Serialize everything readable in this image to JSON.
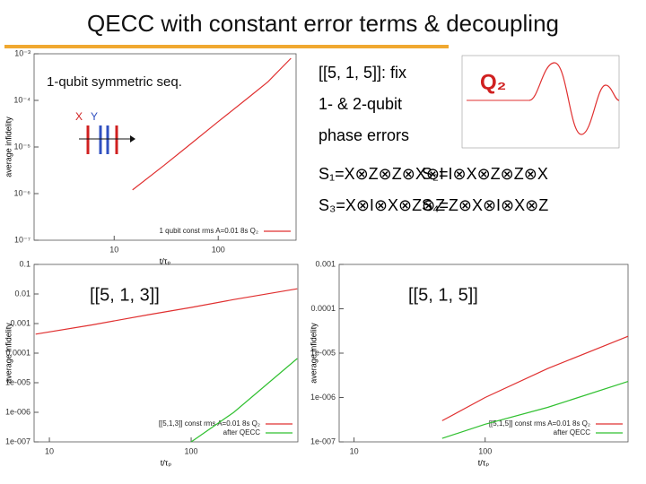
{
  "slide": {
    "title": "QECC with constant error terms & decoupling",
    "info": [
      "[[5, 1, 5]]: fix",
      "1- & 2-qubit",
      "phase errors"
    ],
    "qubit_label": "Q₂",
    "stabilizers": [
      "S₁=X⊗Z⊗Z⊗X⊗I",
      "S₂=I⊗X⊗Z⊗Z⊗X",
      "S₃=X⊗I⊗X⊗Z⊗Z",
      "S₄=Z⊗X⊗I⊗X⊗Z"
    ]
  },
  "chart_data": [
    {
      "type": "line",
      "log_x": true,
      "log_y": true,
      "xlabel": "t/τₚ",
      "ylabel": "average infidelity",
      "annotations": [
        "1-qubit symmetric seq.",
        "X",
        "Y"
      ],
      "x": [
        15,
        30,
        50,
        100,
        200,
        300,
        500
      ],
      "series": [
        {
          "name": "1 qubit const rms A=0.01 8s Q₂",
          "color": "#e03030",
          "values": [
            1.2e-06,
            4e-06,
            1e-05,
            3.5e-05,
            0.00012,
            0.00025,
            0.0008
          ]
        }
      ],
      "xlim": [
        1.7,
        560
      ],
      "ylim": [
        1e-07,
        0.001
      ],
      "xticks": [
        10,
        100
      ],
      "yticks": [
        {
          "value": 1e-07,
          "label": "10⁻⁷"
        },
        {
          "value": 1e-06,
          "label": "10⁻⁶"
        },
        {
          "value": 1e-05,
          "label": "10⁻⁵"
        },
        {
          "value": 0.0001,
          "label": "10⁻⁴"
        },
        {
          "value": 0.001,
          "label": "10⁻³"
        }
      ]
    },
    {
      "type": "line",
      "log_x": true,
      "log_y": true,
      "xlabel": "t/τₚ",
      "ylabel": "average infidelity",
      "annotations": [
        "[[5, 1, 3]]"
      ],
      "x": [
        8,
        20,
        50,
        100,
        200,
        560
      ],
      "series": [
        {
          "name": "[[5,1,3]] const rms A=0.01 8s Q₂",
          "color": "#e03030",
          "values": [
            0.00044,
            0.0009,
            0.002,
            0.0035,
            0.0065,
            0.015
          ]
        },
        {
          "name": "after QECC",
          "color": "#30c030",
          "values": [
            null,
            null,
            null,
            1e-07,
            1e-06,
            6.6e-05
          ]
        }
      ],
      "xlim": [
        7.8,
        566
      ],
      "ylim": [
        1e-07,
        0.1
      ],
      "xticks": [
        10,
        100
      ],
      "yticks": [
        {
          "value": 1e-07,
          "label": "1e-007"
        },
        {
          "value": 1e-06,
          "label": "1e-006"
        },
        {
          "value": 1e-05,
          "label": "1e-005"
        },
        0.0001,
        0.001,
        0.01,
        0.1
      ]
    },
    {
      "type": "line",
      "log_x": true,
      "log_y": true,
      "xlabel": "t/τₚ",
      "ylabel": "average infidelity",
      "annotations": [
        "[[5, 1, 5]]"
      ],
      "x": [
        47,
        100,
        300,
        1230
      ],
      "series": [
        {
          "name": "[[5,1,5]] const rms A=0.01 8s Q₂",
          "color": "#e03030",
          "values": [
            3e-07,
            1e-06,
            4.5e-06,
            2.4e-05
          ]
        },
        {
          "name": "after QECC",
          "color": "#30c030",
          "values": [
            1.2e-07,
            2.5e-07,
            6e-07,
            2.3e-06
          ]
        }
      ],
      "xlim": [
        7.7,
        1230
      ],
      "ylim": [
        1e-07,
        0.001
      ],
      "xticks": [
        10,
        100
      ],
      "yticks": [
        {
          "value": 1e-07,
          "label": "1e-007"
        },
        {
          "value": 1e-06,
          "label": "1e-006"
        },
        {
          "value": 1e-05,
          "label": "1e-005"
        },
        0.0001,
        0.001
      ]
    }
  ]
}
